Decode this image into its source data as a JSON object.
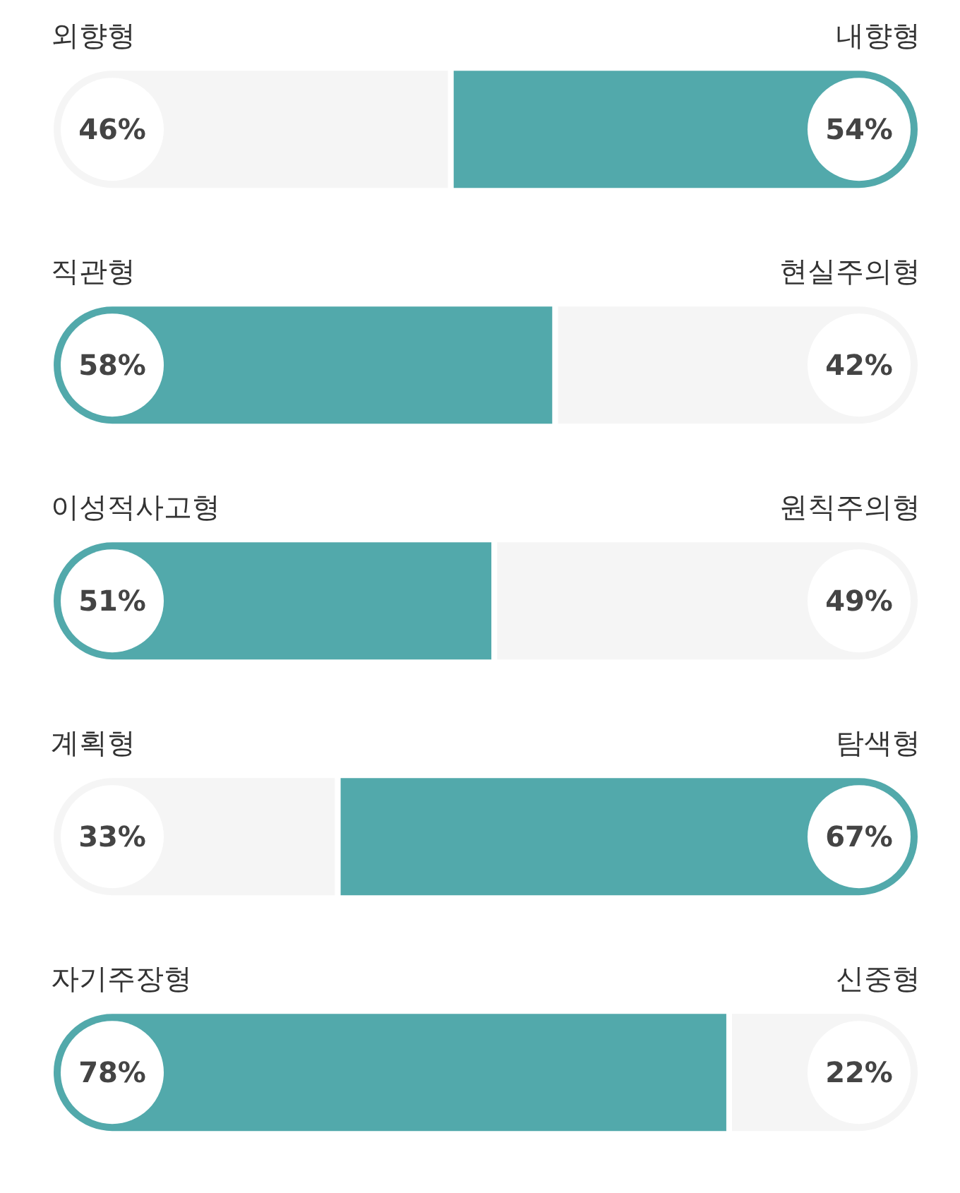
{
  "chart_data": {
    "type": "bar",
    "orientation": "horizontal",
    "stacked": true,
    "categories": [
      "외향형",
      "직관형",
      "이성적사고형",
      "계획형",
      "자기주장형"
    ],
    "series": [
      {
        "values": [
          46,
          58,
          51,
          33,
          78
        ],
        "colors": [
          "#f5f5f5",
          "#52a9ab",
          "#52a9ab",
          "#f5f5f5",
          "#52a9ab"
        ],
        "value_labels": [
          "46%",
          "58%",
          "51%",
          "33%",
          "78%"
        ]
      },
      {
        "values": [
          54,
          42,
          49,
          67,
          22
        ],
        "colors": [
          "#52a9ab",
          "#f5f5f5",
          "#f5f5f5",
          "#52a9ab",
          "#f5f5f5"
        ],
        "value_labels": [
          "54%",
          "42%",
          "49%",
          "67%",
          "22%"
        ]
      }
    ],
    "annotations": [
      "내향형",
      "현실주의형",
      "원칙주의형",
      "탐색형",
      "신중형"
    ],
    "tick_labels": false,
    "grid": false,
    "legend": false
  }
}
